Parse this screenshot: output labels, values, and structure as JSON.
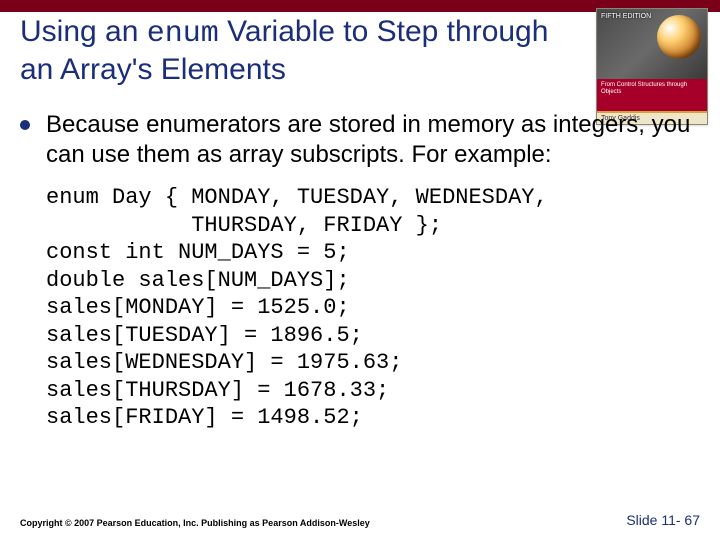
{
  "topbar_color": "#7a0019",
  "title": {
    "pre": "Using an ",
    "mono": "enum",
    "post": " Variable to Step through an Array's Elements",
    "color": "#1a2e7a"
  },
  "book": {
    "small_top": "FIFTH EDITION",
    "band": "From Control Structures through Objects",
    "author": "Tony Gaddis"
  },
  "bullet": {
    "dot_color": "#1a2e7a",
    "text": "Because enumerators are stored in memory as integers, you can use them as array subscripts. For example:"
  },
  "code": "enum Day { MONDAY, TUESDAY, WEDNESDAY,\n           THURSDAY, FRIDAY };\nconst int NUM_DAYS = 5;\ndouble sales[NUM_DAYS];\nsales[MONDAY] = 1525.0;\nsales[TUESDAY] = 1896.5;\nsales[WEDNESDAY] = 1975.63;\nsales[THURSDAY] = 1678.33;\nsales[FRIDAY] = 1498.52;",
  "footer": {
    "copyright": "Copyright © 2007 Pearson Education, Inc. Publishing as Pearson Addison-Wesley",
    "slide": "Slide 11- 67",
    "slide_color": "#1a2e7a"
  }
}
